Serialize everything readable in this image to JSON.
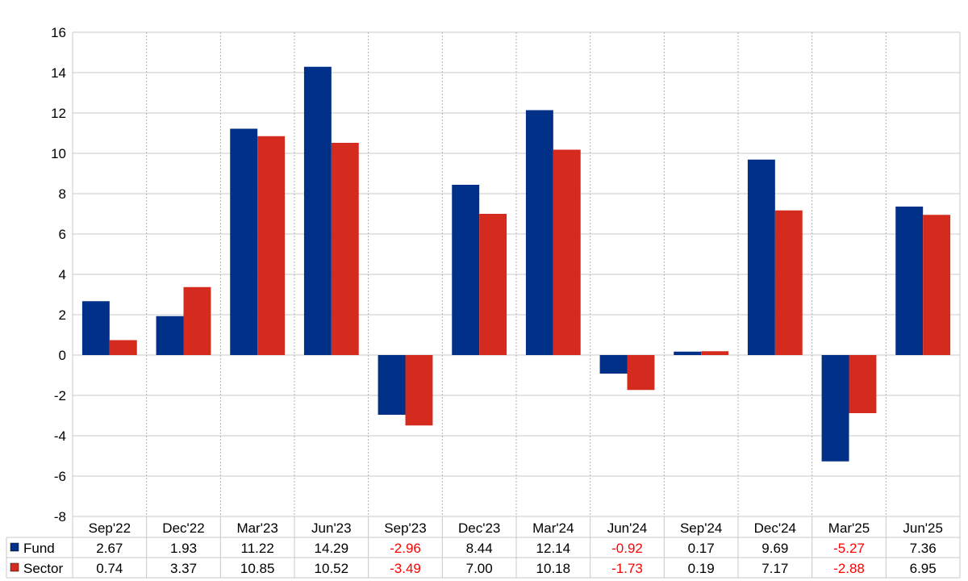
{
  "chart_data": {
    "type": "bar",
    "categories": [
      "Sep'22",
      "Dec'22",
      "Mar'23",
      "Jun'23",
      "Sep'23",
      "Dec'23",
      "Mar'24",
      "Jun'24",
      "Sep'24",
      "Dec'24",
      "Mar'25",
      "Jun'25"
    ],
    "series": [
      {
        "name": "Fund",
        "color": "#003087",
        "values": [
          2.67,
          1.93,
          11.22,
          14.29,
          -2.96,
          8.44,
          12.14,
          -0.92,
          0.17,
          9.69,
          -5.27,
          7.36
        ],
        "labels": [
          "2.67",
          "1.93",
          "11.22",
          "14.29",
          "-2.96",
          "8.44",
          "12.14",
          "-0.92",
          "0.17",
          "9.69",
          "-5.27",
          "7.36"
        ]
      },
      {
        "name": "Sector",
        "color": "#d52b1e",
        "values": [
          0.74,
          3.37,
          10.85,
          10.52,
          -3.49,
          7.0,
          10.18,
          -1.73,
          0.19,
          7.17,
          -2.88,
          6.95
        ],
        "labels": [
          "0.74",
          "3.37",
          "10.85",
          "10.52",
          "-3.49",
          "7.00",
          "10.18",
          "-1.73",
          "0.19",
          "7.17",
          "-2.88",
          "6.95"
        ]
      }
    ],
    "ylim": [
      -8,
      16
    ],
    "yticks": [
      "16",
      "14",
      "12",
      "10",
      "8",
      "6",
      "4",
      "2",
      "0",
      "-2",
      "-4",
      "-6",
      "-8"
    ],
    "ytick_values": [
      16,
      14,
      12,
      10,
      8,
      6,
      4,
      2,
      0,
      -2,
      -4,
      -6,
      -8
    ],
    "grid": true,
    "legend": "data-table-left",
    "negative_value_color": "#ff0000",
    "title": "",
    "xlabel": "",
    "ylabel": ""
  }
}
